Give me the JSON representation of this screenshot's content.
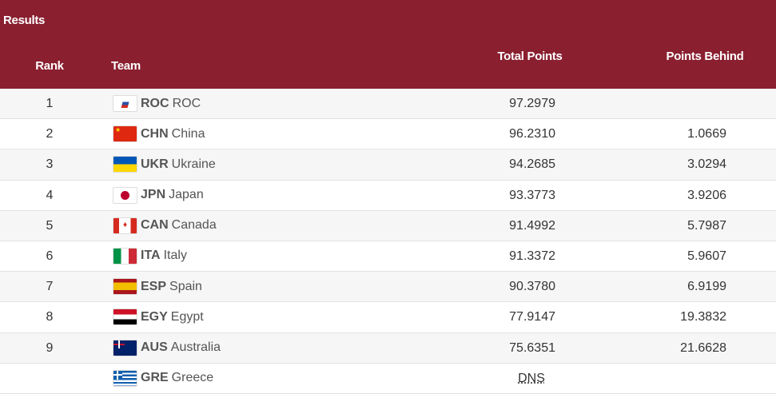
{
  "title": "Results",
  "columns": {
    "rank": "Rank",
    "team": "Team",
    "total": "Total Points",
    "behind": "Points Behind"
  },
  "rows": [
    {
      "rank": "1",
      "code": "ROC",
      "name": "ROC",
      "total": "97.2979",
      "behind": "",
      "flag": "roc"
    },
    {
      "rank": "2",
      "code": "CHN",
      "name": "China",
      "total": "96.2310",
      "behind": "1.0669",
      "flag": "chn"
    },
    {
      "rank": "3",
      "code": "UKR",
      "name": "Ukraine",
      "total": "94.2685",
      "behind": "3.0294",
      "flag": "ukr"
    },
    {
      "rank": "4",
      "code": "JPN",
      "name": "Japan",
      "total": "93.3773",
      "behind": "3.9206",
      "flag": "jpn"
    },
    {
      "rank": "5",
      "code": "CAN",
      "name": "Canada",
      "total": "91.4992",
      "behind": "5.7987",
      "flag": "can"
    },
    {
      "rank": "6",
      "code": "ITA",
      "name": "Italy",
      "total": "91.3372",
      "behind": "5.9607",
      "flag": "ita"
    },
    {
      "rank": "7",
      "code": "ESP",
      "name": "Spain",
      "total": "90.3780",
      "behind": "6.9199",
      "flag": "esp"
    },
    {
      "rank": "8",
      "code": "EGY",
      "name": "Egypt",
      "total": "77.9147",
      "behind": "19.3832",
      "flag": "egy"
    },
    {
      "rank": "9",
      "code": "AUS",
      "name": "Australia",
      "total": "75.6351",
      "behind": "21.6628",
      "flag": "aus"
    },
    {
      "rank": "",
      "code": "GRE",
      "name": "Greece",
      "total": "DNS",
      "behind": "",
      "flag": "gre"
    }
  ],
  "colors": {
    "header": "#8a1f30"
  }
}
